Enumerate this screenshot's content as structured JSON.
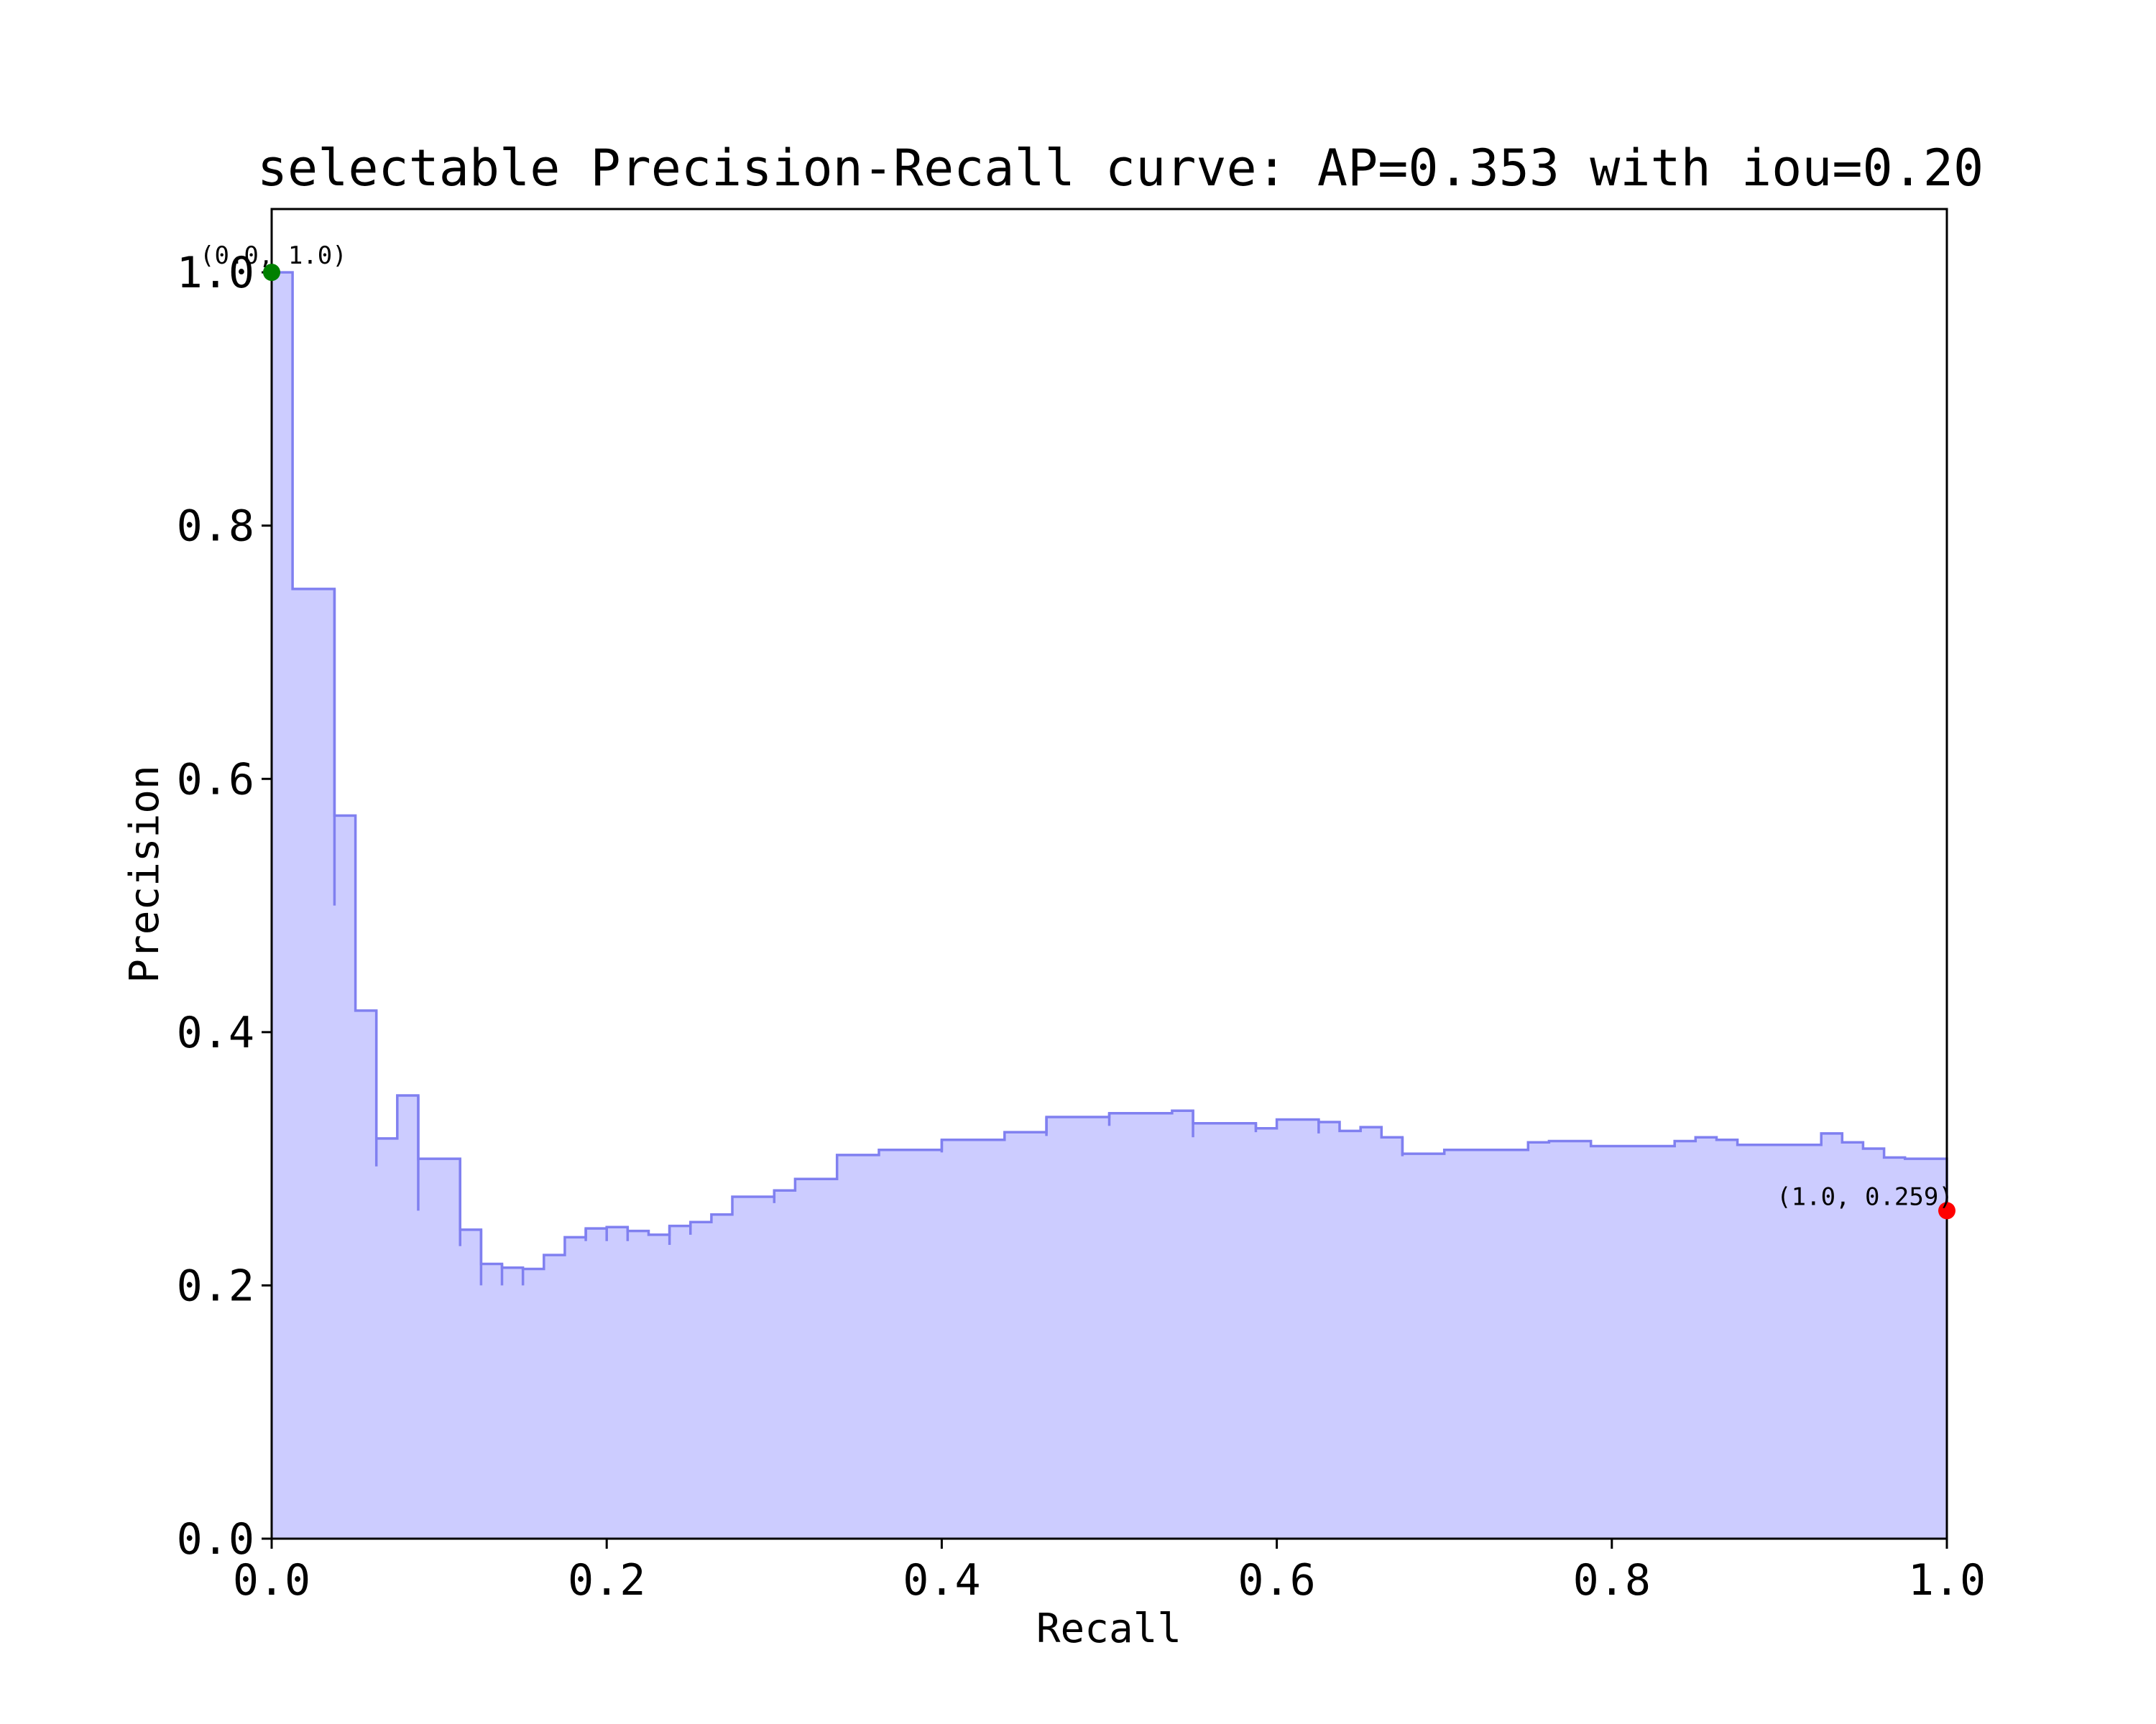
{
  "chart_data": {
    "type": "area",
    "title": "selectable Precision-Recall curve: AP=0.353 with iou=0.20",
    "xlabel": "Recall",
    "ylabel": "Precision",
    "xlim": [
      0.0,
      1.0
    ],
    "ylim": [
      0.0,
      1.05
    ],
    "grid": false,
    "x_ticks": [
      "0.0",
      "0.2",
      "0.4",
      "0.6",
      "0.8",
      "1.0"
    ],
    "y_ticks": [
      "0.0",
      "0.2",
      "0.4",
      "0.6",
      "0.8",
      "1.0"
    ],
    "series": [
      {
        "style": "step",
        "x": [
          0.0,
          0.0,
          0.0125,
          0.0125,
          0.0375,
          0.0375,
          0.05,
          0.05,
          0.0625,
          0.0625,
          0.075,
          0.075,
          0.0875,
          0.0875,
          0.1125,
          0.1125,
          0.125,
          0.125,
          0.1375,
          0.1375,
          0.15,
          0.15,
          0.1625,
          0.1625,
          0.175,
          0.175,
          0.1875,
          0.1875,
          0.2,
          0.2,
          0.2125,
          0.2125,
          0.225,
          0.225,
          0.2375,
          0.2375,
          0.25,
          0.25,
          0.2625,
          0.2625,
          0.275,
          0.275,
          0.2875,
          0.2875,
          0.3,
          0.3,
          0.3125,
          0.3125,
          0.3375,
          0.3375,
          0.3625,
          0.3625,
          0.4,
          0.4,
          0.4375,
          0.4375,
          0.4625,
          0.4625,
          0.5,
          0.5,
          0.5375,
          0.5375,
          0.55,
          0.55,
          0.5875,
          0.5875,
          0.6,
          0.6,
          0.625,
          0.625,
          0.6375,
          0.6375,
          0.65,
          0.65,
          0.6625,
          0.6625,
          0.675,
          0.675,
          0.7,
          0.7,
          0.75,
          0.75,
          0.7625,
          0.7625,
          0.7875,
          0.7875,
          0.8375,
          0.8375,
          0.85,
          0.85,
          0.8625,
          0.8625,
          0.875,
          0.875,
          0.925,
          0.925,
          0.9375,
          0.9375,
          0.95,
          0.95,
          0.9625,
          0.9625,
          0.975,
          0.975,
          1.0,
          1.0
        ],
        "y": [
          1.0,
          1.0,
          1.0,
          0.75,
          0.75,
          0.571,
          0.571,
          0.417,
          0.417,
          0.316,
          0.316,
          0.35,
          0.35,
          0.3,
          0.3,
          0.244,
          0.244,
          0.217,
          0.217,
          0.214,
          0.214,
          0.213,
          0.213,
          0.224,
          0.224,
          0.238,
          0.238,
          0.245,
          0.245,
          0.246,
          0.246,
          0.243,
          0.243,
          0.24,
          0.24,
          0.247,
          0.247,
          0.25,
          0.25,
          0.256,
          0.256,
          0.27,
          0.27,
          0.27,
          0.27,
          0.275,
          0.275,
          0.284,
          0.284,
          0.303,
          0.303,
          0.307,
          0.307,
          0.315,
          0.315,
          0.321,
          0.321,
          0.333,
          0.333,
          0.336,
          0.336,
          0.338,
          0.338,
          0.328,
          0.328,
          0.324,
          0.324,
          0.331,
          0.331,
          0.329,
          0.329,
          0.322,
          0.322,
          0.325,
          0.325,
          0.317,
          0.317,
          0.304,
          0.304,
          0.307,
          0.307,
          0.313,
          0.313,
          0.314,
          0.314,
          0.31,
          0.31,
          0.314,
          0.314,
          0.317,
          0.317,
          0.315,
          0.315,
          0.311,
          0.311,
          0.32,
          0.32,
          0.313,
          0.313,
          0.308,
          0.308,
          0.301,
          0.301,
          0.3,
          0.3,
          0.259
        ],
        "dips": [
          {
            "x": 0.0375,
            "y": 0.5
          },
          {
            "x": 0.0625,
            "y": 0.294
          },
          {
            "x": 0.0875,
            "y": 0.259
          },
          {
            "x": 0.1125,
            "y": 0.231
          },
          {
            "x": 0.125,
            "y": 0.2
          },
          {
            "x": 0.1375,
            "y": 0.2
          },
          {
            "x": 0.15,
            "y": 0.2
          },
          {
            "x": 0.1875,
            "y": 0.235
          },
          {
            "x": 0.2,
            "y": 0.235
          },
          {
            "x": 0.2125,
            "y": 0.235
          },
          {
            "x": 0.2375,
            "y": 0.232
          },
          {
            "x": 0.25,
            "y": 0.24
          },
          {
            "x": 0.3,
            "y": 0.265
          },
          {
            "x": 0.4,
            "y": 0.305
          },
          {
            "x": 0.4625,
            "y": 0.318
          },
          {
            "x": 0.5,
            "y": 0.326
          },
          {
            "x": 0.55,
            "y": 0.317
          },
          {
            "x": 0.5875,
            "y": 0.321
          },
          {
            "x": 0.625,
            "y": 0.32
          },
          {
            "x": 0.675,
            "y": 0.302
          }
        ]
      }
    ],
    "fill_color": "#ccccff",
    "line_color": "#8080f0",
    "points": [
      {
        "x": 0.0,
        "y": 1.0,
        "label": "(0.0, 1.0)",
        "color": "#008000"
      },
      {
        "x": 1.0,
        "y": 0.259,
        "label": "(1.0, 0.259)",
        "color": "#ff0000"
      }
    ]
  }
}
